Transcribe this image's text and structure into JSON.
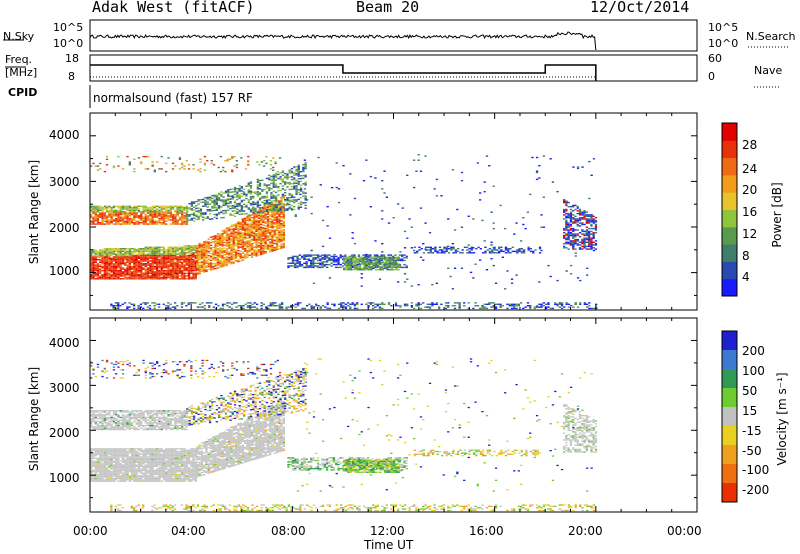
{
  "header": {
    "station": "Adak West (fitACF)",
    "beam": "Beam 20",
    "date": "12/Oct/2014"
  },
  "top_panel": {
    "left_label": "N.Sky",
    "left_ticks": [
      "10^5",
      "10^0"
    ],
    "right_ticks": [
      "10^5",
      "10^0"
    ],
    "right_label": "N.Search"
  },
  "freq_panel": {
    "left_label_1": "Freq.",
    "left_label_2": "[MHz]",
    "left_ticks": [
      "18",
      "8"
    ],
    "right_ticks": [
      "60",
      "0"
    ],
    "right_label": "Nave"
  },
  "cpid": {
    "label": "CPID",
    "text": "normalsound (fast) 157 RF"
  },
  "colors": {
    "power": [
      "#1a1aff",
      "#2a48b0",
      "#3f7d6c",
      "#5a9a4d",
      "#8fc43b",
      "#e7c42a",
      "#f29c1a",
      "#ef6a12",
      "#e8300a",
      "#e00000"
    ],
    "velocity": [
      "#2020d0",
      "#3a7ad0",
      "#2e9a55",
      "#6ccc30",
      "#c0c0c0",
      "#e8d020",
      "#f0a020",
      "#f07010",
      "#e83000"
    ],
    "ground_scatter": "#c4c4c4"
  },
  "chart_data": [
    {
      "type": "heatmap",
      "title": "Power",
      "ylabel": "Slant Range [km]",
      "xlabel": "Time UT",
      "x_ticks": [
        "00:00",
        "04:00",
        "08:00",
        "12:00",
        "16:00",
        "20:00",
        "00:00"
      ],
      "y_ticks": [
        "1000",
        "2000",
        "3000",
        "4000"
      ],
      "xlim": [
        0,
        24
      ],
      "ylim": [
        180,
        4500
      ],
      "colorbar_label": "Power [dB]",
      "colorbar_ticks": [
        "4",
        "8",
        "12",
        "16",
        "20",
        "24",
        "28"
      ],
      "clim": [
        0,
        30
      ]
    },
    {
      "type": "heatmap",
      "title": "Velocity",
      "ylabel": "Slant Range [km]",
      "xlabel": "Time UT",
      "x_ticks": [
        "00:00",
        "04:00",
        "08:00",
        "12:00",
        "16:00",
        "20:00",
        "00:00"
      ],
      "y_ticks": [
        "1000",
        "2000",
        "3000",
        "4000"
      ],
      "xlim": [
        0,
        24
      ],
      "ylim": [
        180,
        4500
      ],
      "colorbar_label": "Velocity [m s⁻¹]",
      "colorbar_ticks": [
        "200",
        "100",
        "50",
        "15",
        "-15",
        "-50",
        "-100",
        "-200"
      ]
    }
  ],
  "axis": {
    "xlabel": "Time UT"
  }
}
